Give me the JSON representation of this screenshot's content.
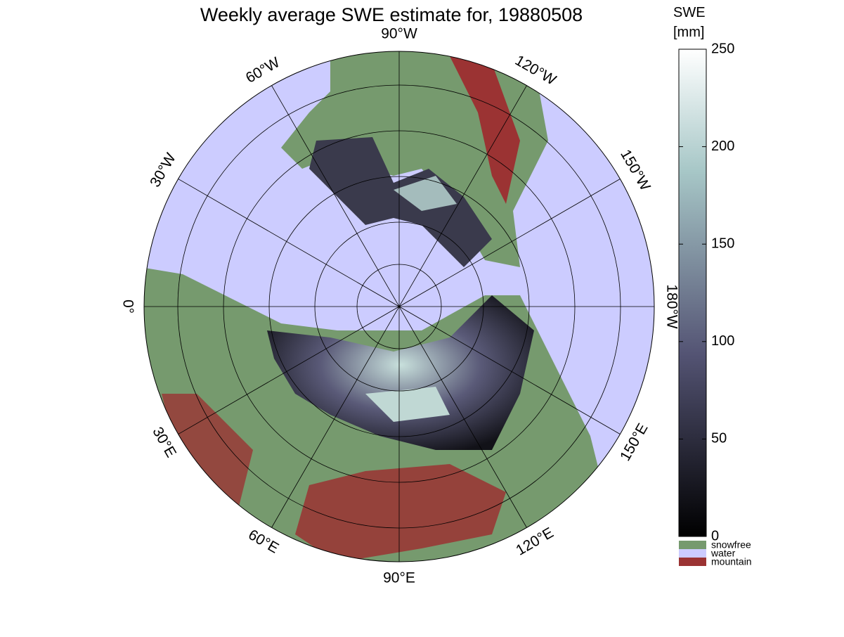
{
  "title": "Weekly average SWE estimate for, 19880508",
  "longitude_labels": [
    "90°W",
    "60°W",
    "120°W",
    "30°W",
    "150°W",
    "0°",
    "180°W",
    "30°E",
    "150°E",
    "60°E",
    "120°E",
    "90°E"
  ],
  "colorbar": {
    "label": [
      "SWE",
      "[mm]"
    ],
    "lim": [
      0,
      250
    ],
    "ticks": [
      0,
      50,
      100,
      150,
      200,
      250
    ]
  },
  "legend": [
    {
      "name": "snowfree",
      "color": "#769a6e"
    },
    {
      "name": "water",
      "color": "#ccccff"
    },
    {
      "name": "mountain",
      "color": "#9b3333"
    }
  ]
}
